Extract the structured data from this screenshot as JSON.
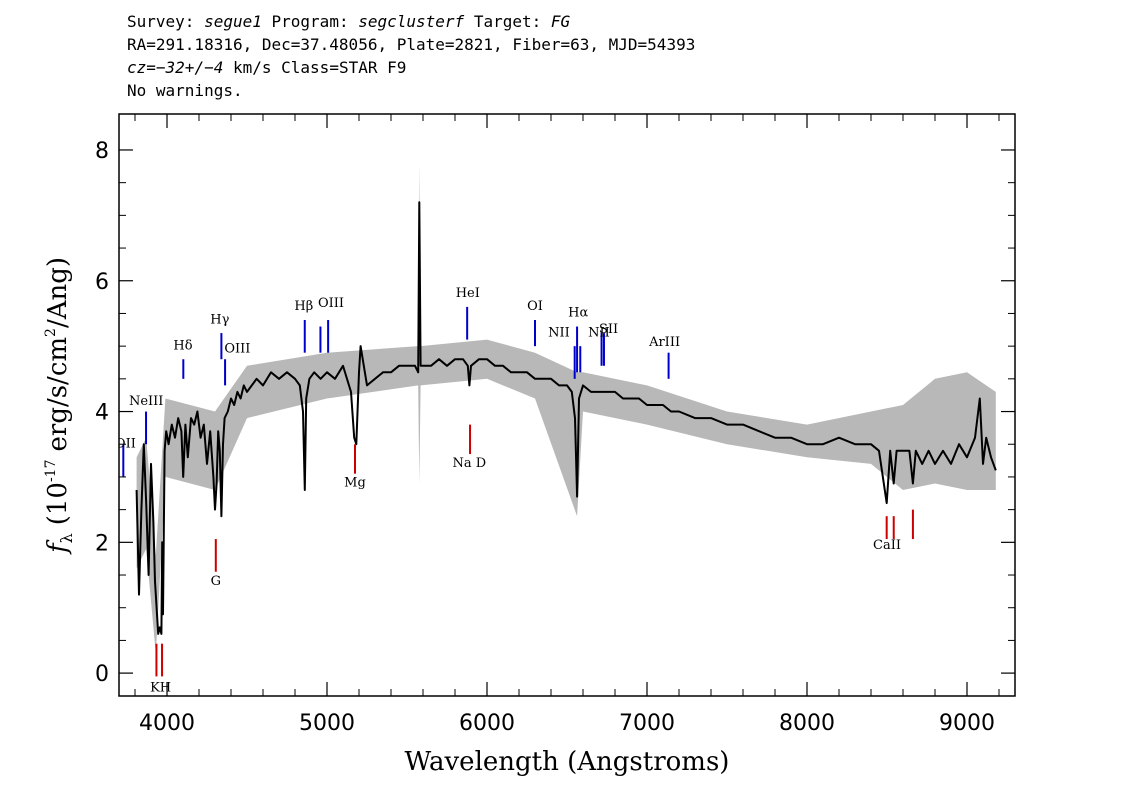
{
  "header": {
    "survey_label": "Survey:",
    "survey": "segue1",
    "program_label": "Program:",
    "program": "segclusterf",
    "target_label": "Target:",
    "target": "FG",
    "line2": "RA=291.18316, Dec=37.48056, Plate=2821, Fiber=63, MJD=54393",
    "cz_label": "cz=",
    "cz_value": "−32+/−4",
    "cz_rest": "km/s Class=STAR F9",
    "line4": "No warnings."
  },
  "chart_data": {
    "type": "line",
    "xlabel": "Wavelength (Angstroms)",
    "ylabel_prefix": "f",
    "ylabel_sub": "λ",
    "ylabel_main": "(10",
    "ylabel_exp": "-17",
    "ylabel_mid": "erg/s/cm",
    "ylabel_exp2": "2",
    "ylabel_end": "/Ang)",
    "xlim": [
      3700,
      9300
    ],
    "ylim": [
      -0.35,
      8.55
    ],
    "xticks": [
      4000,
      5000,
      6000,
      7000,
      8000,
      9000
    ],
    "xtick_labels": [
      "4000",
      "5000",
      "6000",
      "7000",
      "8000",
      "9000"
    ],
    "yticks": [
      0,
      2,
      4,
      6,
      8
    ],
    "ytick_labels": [
      "0",
      "2",
      "4",
      "6",
      "8"
    ],
    "grid": false,
    "series": [
      {
        "color": "#000000",
        "values_x": [
          3810,
          3825,
          3840,
          3855,
          3870,
          3885,
          3900,
          3915,
          3925,
          3935,
          3945,
          3955,
          3965,
          3970,
          3975,
          3985,
          3995,
          4010,
          4030,
          4050,
          4070,
          4090,
          4101,
          4115,
          4130,
          4150,
          4170,
          4190,
          4210,
          4230,
          4250,
          4270,
          4290,
          4300,
          4310,
          4320,
          4330,
          4340,
          4350,
          4360,
          4380,
          4400,
          4420,
          4440,
          4460,
          4480,
          4500,
          4530,
          4560,
          4600,
          4650,
          4700,
          4750,
          4800,
          4830,
          4850,
          4861,
          4870,
          4890,
          4920,
          4960,
          5000,
          5050,
          5100,
          5150,
          5170,
          5183,
          5200,
          5210,
          5250,
          5300,
          5350,
          5400,
          5450,
          5500,
          5550,
          5570,
          5577,
          5585,
          5600,
          5650,
          5700,
          5750,
          5800,
          5850,
          5880,
          5890,
          5900,
          5950,
          6000,
          6050,
          6100,
          6150,
          6200,
          6250,
          6300,
          6350,
          6400,
          6450,
          6500,
          6530,
          6550,
          6563,
          6575,
          6600,
          6650,
          6700,
          6750,
          6800,
          6850,
          6900,
          6950,
          7000,
          7050,
          7100,
          7150,
          7200,
          7300,
          7400,
          7500,
          7600,
          7700,
          7800,
          7900,
          8000,
          8100,
          8200,
          8300,
          8400,
          8450,
          8498,
          8520,
          8542,
          8560,
          8600,
          8640,
          8662,
          8680,
          8720,
          8760,
          8800,
          8850,
          8900,
          8950,
          9000,
          9050,
          9080,
          9100,
          9120,
          9150,
          9180
        ],
        "values_y": [
          2.8,
          1.2,
          2.5,
          3.5,
          2.6,
          1.5,
          3.2,
          2.3,
          1.4,
          1.0,
          0.6,
          0.7,
          0.6,
          2.0,
          0.9,
          3.4,
          3.7,
          3.5,
          3.8,
          3.6,
          3.9,
          3.7,
          3.0,
          3.8,
          3.3,
          3.9,
          3.8,
          4.0,
          3.6,
          3.8,
          3.2,
          3.7,
          3.0,
          2.5,
          2.9,
          3.7,
          3.4,
          2.4,
          3.5,
          3.9,
          4.0,
          4.2,
          4.1,
          4.3,
          4.2,
          4.4,
          4.3,
          4.4,
          4.5,
          4.4,
          4.6,
          4.5,
          4.6,
          4.5,
          4.4,
          4.0,
          2.8,
          4.2,
          4.5,
          4.6,
          4.5,
          4.6,
          4.5,
          4.7,
          4.3,
          3.6,
          3.5,
          4.6,
          5.0,
          4.4,
          4.5,
          4.6,
          4.6,
          4.7,
          4.7,
          4.7,
          4.6,
          7.2,
          4.7,
          4.7,
          4.7,
          4.8,
          4.7,
          4.8,
          4.8,
          4.7,
          4.4,
          4.7,
          4.8,
          4.8,
          4.7,
          4.7,
          4.6,
          4.6,
          4.6,
          4.5,
          4.5,
          4.5,
          4.4,
          4.4,
          4.3,
          3.9,
          2.7,
          4.2,
          4.4,
          4.3,
          4.3,
          4.3,
          4.3,
          4.2,
          4.2,
          4.2,
          4.1,
          4.1,
          4.1,
          4.0,
          4.0,
          3.9,
          3.9,
          3.8,
          3.8,
          3.7,
          3.6,
          3.6,
          3.5,
          3.5,
          3.6,
          3.5,
          3.5,
          3.4,
          2.6,
          3.4,
          2.9,
          3.4,
          3.4,
          3.4,
          2.9,
          3.4,
          3.2,
          3.4,
          3.2,
          3.4,
          3.2,
          3.5,
          3.3,
          3.6,
          4.2,
          3.2,
          3.6,
          3.3,
          3.1
        ]
      }
    ],
    "error_band": {
      "color": "#b8b8b8",
      "x": [
        3810,
        3870,
        3930,
        3990,
        4300,
        4500,
        5000,
        5570,
        5577,
        5585,
        6000,
        6300,
        6563,
        6600,
        7000,
        7500,
        8000,
        8400,
        8600,
        8800,
        9000,
        9180
      ],
      "lo": [
        1.6,
        1.9,
        0.3,
        3.0,
        2.8,
        3.9,
        4.2,
        4.4,
        2.9,
        4.4,
        4.5,
        4.2,
        2.4,
        4.0,
        3.8,
        3.5,
        3.3,
        3.2,
        2.8,
        2.9,
        2.8,
        2.8
      ],
      "hi": [
        3.3,
        3.6,
        1.8,
        4.2,
        4.0,
        4.7,
        4.9,
        5.0,
        7.8,
        5.0,
        5.1,
        4.9,
        4.6,
        4.6,
        4.4,
        4.0,
        3.8,
        4.0,
        4.1,
        4.5,
        4.6,
        4.3
      ]
    },
    "emission_lines": {
      "color": "#0000cc",
      "items": [
        {
          "label": "OII",
          "x": 3727,
          "y0": 3.0,
          "y1": 3.5
        },
        {
          "label": "NeIII",
          "x": 3869,
          "y0": 3.5,
          "y1": 4.0
        },
        {
          "label": "Hδ",
          "x": 4102,
          "y0": 4.5,
          "y1": 4.8
        },
        {
          "label": "Hγ",
          "x": 4340,
          "y0": 4.8,
          "y1": 5.2
        },
        {
          "label": "OIII",
          "x": 4363,
          "y0": 4.4,
          "y1": 4.8
        },
        {
          "label": "Hβ",
          "x": 4861,
          "y0": 4.9,
          "y1": 5.4
        },
        {
          "label": "OIII",
          "x": 4959,
          "y0": 4.9,
          "y1": 5.3
        },
        {
          "label": "OIII",
          "x": 5007,
          "y0": 4.9,
          "y1": 5.4
        },
        {
          "label": "HeI",
          "x": 5876,
          "y0": 5.1,
          "y1": 5.6
        },
        {
          "label": "OI",
          "x": 6300,
          "y0": 5.0,
          "y1": 5.4
        },
        {
          "label": "NII",
          "x": 6548,
          "y0": 4.5,
          "y1": 5.0
        },
        {
          "label": "Hα",
          "x": 6563,
          "y0": 4.6,
          "y1": 5.3
        },
        {
          "label": "NII",
          "x": 6583,
          "y0": 4.6,
          "y1": 5.0
        },
        {
          "label": "SII",
          "x": 6716,
          "y0": 4.7,
          "y1": 5.2
        },
        {
          "label": "SII",
          "x": 6731,
          "y0": 4.7,
          "y1": 5.2
        },
        {
          "label": "ArIII",
          "x": 7135,
          "y0": 4.5,
          "y1": 4.9
        }
      ]
    },
    "absorption_lines": {
      "color": "#cc0000",
      "items": [
        {
          "label": "K",
          "x": 3934,
          "y0": -0.05,
          "y1": 0.45
        },
        {
          "label": "H",
          "x": 3969,
          "y0": -0.05,
          "y1": 0.45
        },
        {
          "label": "G",
          "x": 4305,
          "y0": 1.55,
          "y1": 2.05
        },
        {
          "label": "Mg",
          "x": 5175,
          "y0": 3.05,
          "y1": 3.5
        },
        {
          "label": "Na D",
          "x": 5894,
          "y0": 3.35,
          "y1": 3.8
        },
        {
          "label": "CaII",
          "x": 8498,
          "y0": 2.05,
          "y1": 2.4
        },
        {
          "label": "CaII",
          "x": 8542,
          "y0": 2.05,
          "y1": 2.4
        },
        {
          "label": "CaII",
          "x": 8662,
          "y0": 2.05,
          "y1": 2.5
        }
      ]
    },
    "line_text_labels": [
      {
        "text": "OII",
        "x": 3740,
        "y": 3.45,
        "anchor": "middle",
        "clip": true
      },
      {
        "text": "NeIII",
        "x": 3870,
        "y": 4.1,
        "anchor": "middle"
      },
      {
        "text": "Hδ",
        "x": 4100,
        "y": 4.95,
        "anchor": "middle"
      },
      {
        "text": "Hγ",
        "x": 4330,
        "y": 5.35,
        "anchor": "middle"
      },
      {
        "text": "OIII",
        "x": 4440,
        "y": 4.9,
        "anchor": "middle"
      },
      {
        "text": "Hβ",
        "x": 4855,
        "y": 5.55,
        "anchor": "middle"
      },
      {
        "text": "OIII",
        "x": 5025,
        "y": 5.6,
        "anchor": "middle"
      },
      {
        "text": "HeI",
        "x": 5880,
        "y": 5.75,
        "anchor": "middle"
      },
      {
        "text": "OI",
        "x": 6300,
        "y": 5.55,
        "anchor": "middle"
      },
      {
        "text": "NII",
        "x": 6450,
        "y": 5.15,
        "anchor": "middle"
      },
      {
        "text": "Hα",
        "x": 6570,
        "y": 5.45,
        "anchor": "middle"
      },
      {
        "text": "NII",
        "x": 6700,
        "y": 5.15,
        "anchor": "middle"
      },
      {
        "text": "SII",
        "x": 6760,
        "y": 5.2,
        "anchor": "middle"
      },
      {
        "text": "ArIII",
        "x": 7110,
        "y": 5.0,
        "anchor": "middle"
      },
      {
        "text": "KH",
        "x": 3960,
        "y": -0.28,
        "anchor": "middle"
      },
      {
        "text": "G",
        "x": 4305,
        "y": 1.35,
        "anchor": "middle"
      },
      {
        "text": "Mg",
        "x": 5175,
        "y": 2.85,
        "anchor": "middle"
      },
      {
        "text": "Na D",
        "x": 5890,
        "y": 3.15,
        "anchor": "middle"
      },
      {
        "text": "CaII",
        "x": 8500,
        "y": 1.9,
        "anchor": "middle"
      }
    ]
  }
}
